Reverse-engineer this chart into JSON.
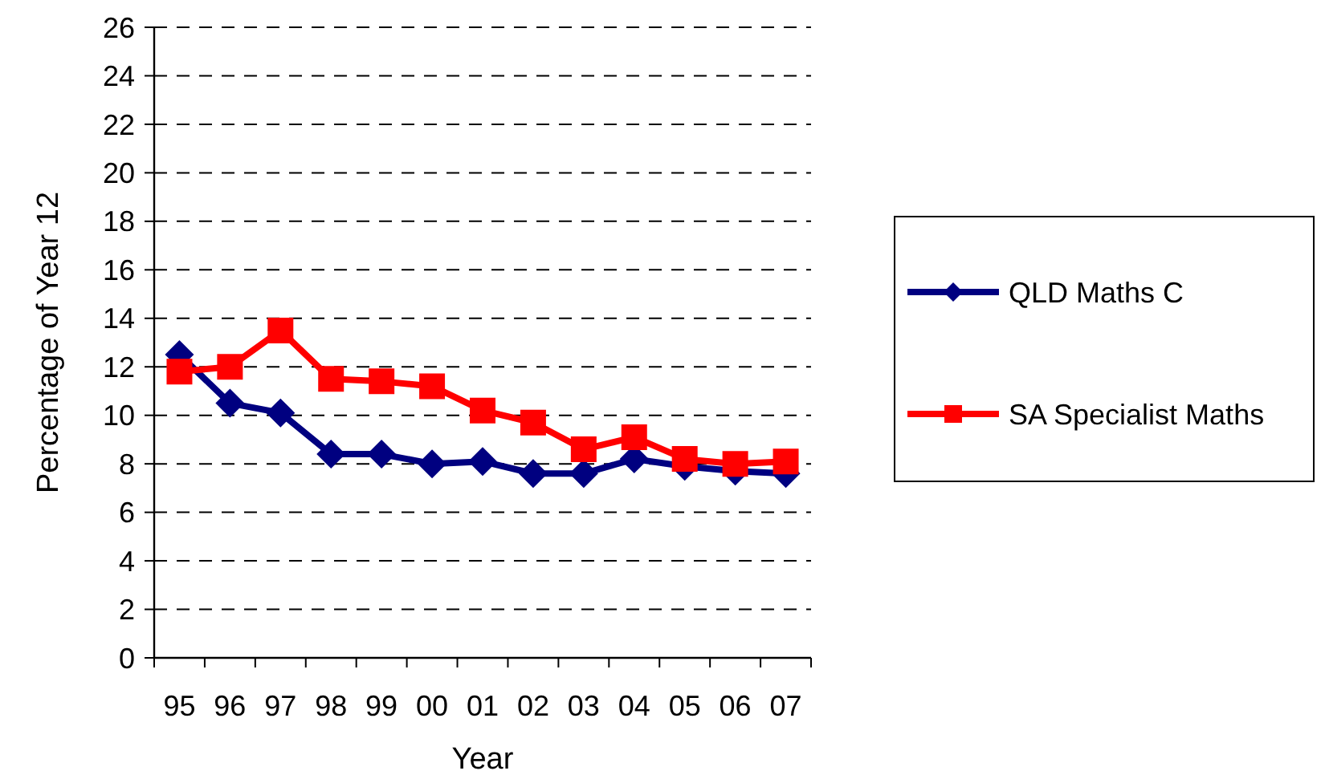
{
  "chart_data": {
    "type": "line",
    "xlabel": "Year",
    "ylabel": "Percentage of Year 12",
    "categories": [
      "95",
      "96",
      "97",
      "98",
      "99",
      "00",
      "01",
      "02",
      "03",
      "04",
      "05",
      "06",
      "07"
    ],
    "series": [
      {
        "name": "QLD Maths C",
        "color": "#000080",
        "marker": "diamond",
        "values": [
          12.5,
          10.5,
          10.1,
          8.4,
          8.4,
          8.0,
          8.1,
          7.6,
          7.6,
          8.2,
          7.9,
          7.7,
          7.6
        ]
      },
      {
        "name": "SA Specialist Maths",
        "color": "#ff0000",
        "marker": "square",
        "values": [
          11.8,
          12.0,
          13.5,
          11.5,
          11.4,
          11.2,
          10.2,
          9.7,
          8.6,
          9.1,
          8.2,
          8.0,
          8.1
        ]
      }
    ],
    "ylim": [
      0,
      26
    ],
    "yticks": [
      0,
      2,
      4,
      6,
      8,
      10,
      12,
      14,
      16,
      18,
      20,
      22,
      24,
      26
    ],
    "grid": "y",
    "legend": "right",
    "line_style": "solid"
  }
}
